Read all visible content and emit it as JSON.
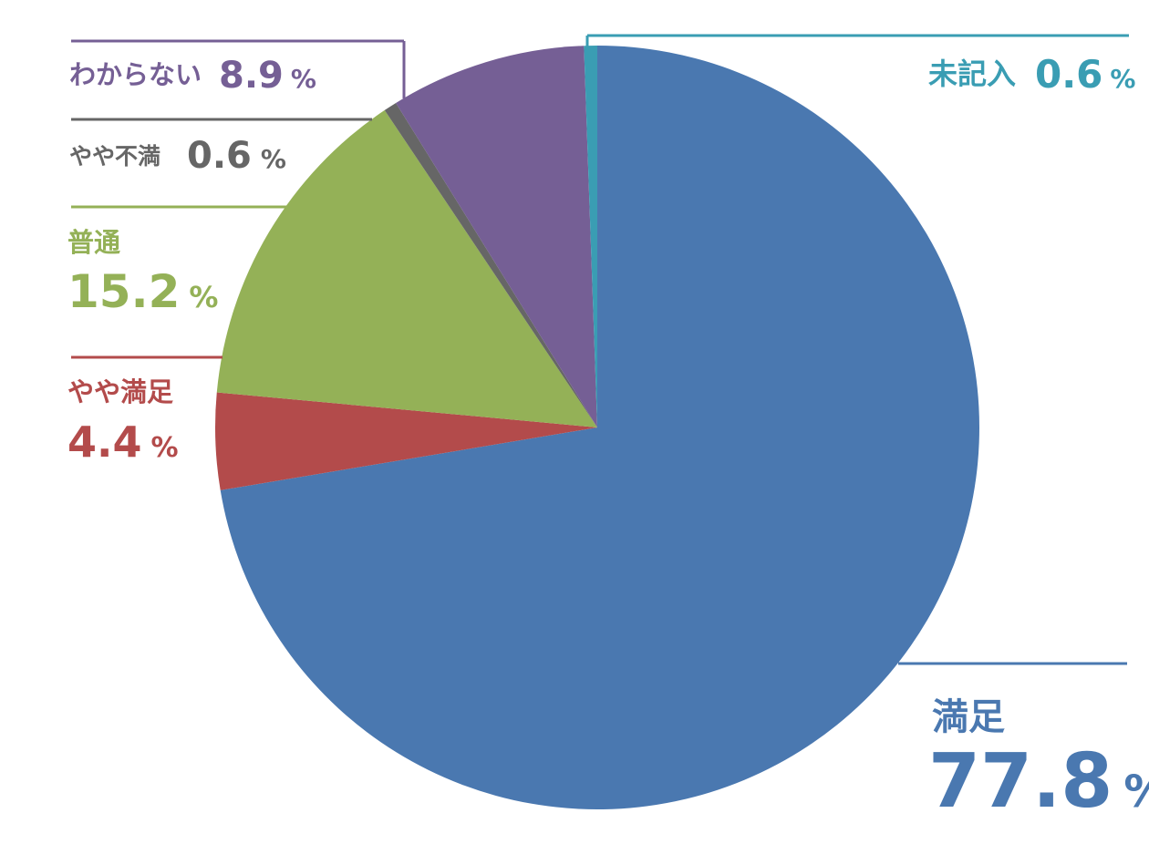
{
  "chart_data": {
    "type": "pie",
    "title": "",
    "start_angle_deg": 0,
    "direction": "clockwise",
    "slices": [
      {
        "label": "満足",
        "value": 77.8,
        "value_text": "77.8",
        "unit": "%",
        "color": "#4a78b0"
      },
      {
        "label": "やや満足",
        "value": 4.4,
        "value_text": "4.4",
        "unit": "%",
        "color": "#b34b4b"
      },
      {
        "label": "普通",
        "value": 15.2,
        "value_text": "15.2",
        "unit": "%",
        "color": "#94b157"
      },
      {
        "label": "やや不満",
        "value": 0.6,
        "value_text": "0.6",
        "unit": "%",
        "color": "#666666"
      },
      {
        "label": "わからない",
        "value": 8.9,
        "value_text": "8.9",
        "unit": "%",
        "color": "#755f95"
      },
      {
        "label": "未記入",
        "value": 0.6,
        "value_text": "0.6",
        "unit": "%",
        "color": "#3a9db3"
      }
    ]
  }
}
